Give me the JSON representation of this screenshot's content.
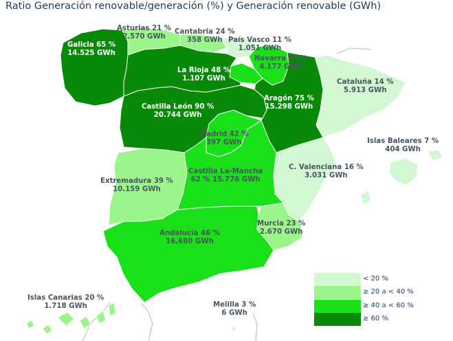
{
  "title": "Ratio Generación renovable/generación (%) y Generación renovable (GWh)",
  "colors": {
    "lt20": "#d3f7d3",
    "20to40": "#9af58a",
    "40to60": "#19e019",
    "gte60": "#088a08",
    "sea": "#ffffff",
    "neighbor_border": "#b9b9b9"
  },
  "regions": {
    "galicia": {
      "name": "Galicia 65 %",
      "gwh": "14.525 GWh"
    },
    "asturias": {
      "name": "Asturias 21 %",
      "gwh": "2.570 GWh"
    },
    "cantabria": {
      "name": "Cantabria 24 %",
      "gwh": "358 GWh"
    },
    "paisvasco": {
      "name": "País Vasco 11 %",
      "gwh": "1.051 GWh"
    },
    "navarra": {
      "name": "Navarra 48 %",
      "gwh": "4.177 GWh"
    },
    "larioja": {
      "name": "La Rioja 48 %",
      "gwh": "1.107 GWh"
    },
    "aragon": {
      "name": "Aragón 75 %",
      "gwh": "15.298 GWh"
    },
    "cataluna": {
      "name": "Cataluña 14 %",
      "gwh": "5.913 GWh"
    },
    "castleon": {
      "name": "Castilla León 90 %",
      "gwh": "20.744 GWh"
    },
    "madrid": {
      "name": "Madrid 42 %",
      "gwh": "397 GWh"
    },
    "castmancha": {
      "name": "Castilla La-Mancha",
      "gwh": "62 % 15.776 GWh"
    },
    "extremadura": {
      "name": "Extremadura 39 %",
      "gwh": "10.159 GWh"
    },
    "valenciana": {
      "name": "C. Valenciana 16 %",
      "gwh": "3.031 GWh"
    },
    "baleares": {
      "name": "Islas Baleares 7 %",
      "gwh": "404 GWh"
    },
    "murcia": {
      "name": "Murcia 23 %",
      "gwh": "2.670 GWh"
    },
    "andalucia": {
      "name": "Andalucía 46 %",
      "gwh": "16.680 GWh"
    },
    "canarias": {
      "name": "Islas Canarias 20 %",
      "gwh": "1.718 GWh"
    },
    "melilla": {
      "name": "Melilla 3 %",
      "gwh": "6 GWh"
    }
  },
  "legend": [
    {
      "label": "<  20 %",
      "color": "#d3f7d3"
    },
    {
      "label": "≥ 20 a < 40 %",
      "color": "#9af58a"
    },
    {
      "label": "≥ 40 a < 60 %",
      "color": "#19e019"
    },
    {
      "label": "≥ 60 %",
      "color": "#088a08"
    }
  ]
}
